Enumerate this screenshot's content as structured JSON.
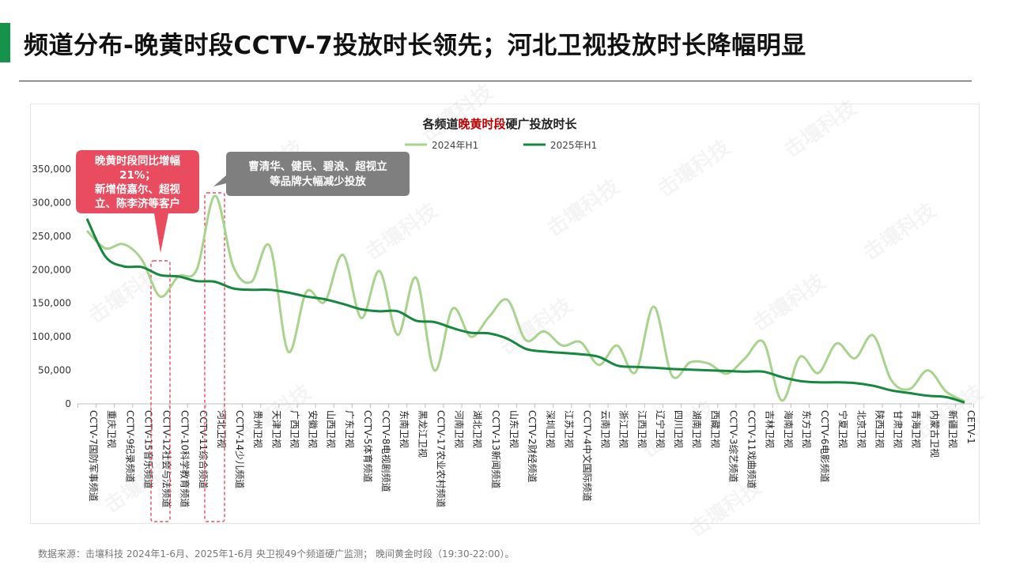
{
  "page": {
    "title": "频道分布-晚黄时段CCTV-7投放时长领先；河北卫视投放时长降幅明显",
    "source": "数据来源：击壤科技  2024年1-6月、2025年1-6月 央卫视49个频道硬广监测； 晚间黄金时段（19:30-22:00）。"
  },
  "colors": {
    "accent": "#15934a",
    "series_2024": "#a8d38d",
    "series_2025": "#16873f",
    "callout_red": "#e94c5e",
    "callout_gray": "#808080",
    "highlight_red": "#c00000"
  },
  "watermark": "击壤科技",
  "chart_data": {
    "type": "line",
    "title_parts": [
      "各频道",
      "晚黄时段",
      "硬广投放时长"
    ],
    "ylim": [
      0,
      350000
    ],
    "yticks": [
      "0",
      "50,000",
      "100,000",
      "150,000",
      "200,000",
      "250,000",
      "300,000",
      "350,000"
    ],
    "ytick_values": [
      0,
      50000,
      100000,
      150000,
      200000,
      250000,
      300000,
      350000
    ],
    "legend_position": "top-center",
    "grid": false,
    "categories": [
      "CCTV-7国防军事频道",
      "重庆卫视",
      "CCTV-9纪录频道",
      "CCTV-15音乐频道",
      "CCTV-12社会与法频道",
      "CCTV-10科学教育频道",
      "CCTV-11综合频道",
      "河北卫视",
      "CCTV-14少儿频道",
      "贵州卫视",
      "天津卫视",
      "广西卫视",
      "安徽卫视",
      "山西卫视",
      "广东卫视",
      "CCTV-5体育频道",
      "CCTV-8电视剧频道",
      "东南卫视",
      "黑龙江卫视",
      "CCTV-17农业农村频道",
      "河南卫视",
      "湖北卫视",
      "CCTV-13新闻频道",
      "山东卫视",
      "CCTV-2财经频道",
      "深圳卫视",
      "江苏卫视",
      "CCTV-4中文国际频道",
      "云南卫视",
      "浙江卫视",
      "江西卫视",
      "辽宁卫视",
      "四川卫视",
      "湖南卫视",
      "西藏卫视",
      "CCTV-3综艺频道",
      "CCTV-11戏曲频道",
      "吉林卫视",
      "海南卫视",
      "东方卫视",
      "CCTV-6电影频道",
      "宁夏卫视",
      "北京卫视",
      "陕西卫视",
      "甘肃卫视",
      "青海卫视",
      "内蒙古卫视",
      "新疆卫视",
      "CETV-1"
    ],
    "series": [
      {
        "name": "2024年H1",
        "values": [
          258000,
          232000,
          238000,
          215000,
          160000,
          190000,
          200000,
          310000,
          205000,
          182000,
          235000,
          78000,
          167000,
          152000,
          222000,
          128000,
          198000,
          103000,
          188000,
          50000,
          142000,
          100000,
          130000,
          155000,
          95000,
          108000,
          87000,
          92000,
          58000,
          87000,
          47000,
          145000,
          42000,
          62000,
          60000,
          45000,
          68000,
          92000,
          5000,
          70000,
          46000,
          90000,
          68000,
          102000,
          35000,
          22000,
          50000,
          18000,
          4000
        ]
      },
      {
        "name": "2025年H1",
        "values": [
          276000,
          220000,
          205000,
          204000,
          192000,
          190000,
          183000,
          182000,
          172000,
          170000,
          170000,
          166000,
          160000,
          156000,
          149000,
          141000,
          138000,
          138000,
          124000,
          122000,
          113000,
          106000,
          105000,
          97000,
          82000,
          78000,
          76000,
          74000,
          70000,
          57000,
          55000,
          54000,
          52000,
          51000,
          50000,
          49000,
          48000,
          48000,
          40000,
          34000,
          32000,
          32000,
          31000,
          27000,
          20000,
          16000,
          12000,
          10000,
          2000
        ]
      }
    ],
    "annotations": {
      "callout_red": "晚黄时段同比增幅\n21%；\n新增倍嘉尔、超视\n立、陈李济等客户",
      "callout_gray": "曹清华、健民、碧浪、超视立\n等品牌大幅减少投放"
    }
  }
}
